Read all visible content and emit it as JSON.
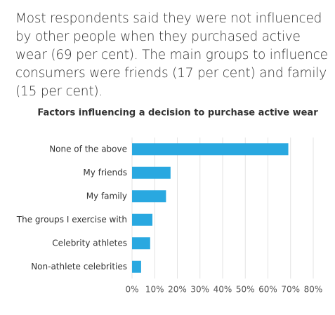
{
  "intro": "Most respondents said they were not influenced by other people when they purchased active wear (69 per cent). The main groups to influence consumers were friends (17 per cent) and family (15 per cent).",
  "chart_data": {
    "type": "bar",
    "orientation": "horizontal",
    "title": "Factors influencing a decision to purchase active wear",
    "categories": [
      "None of the above",
      "My friends",
      "My family",
      "The groups I exercise with",
      "Celebrity athletes",
      "Non-athlete celebrities"
    ],
    "values": [
      69,
      17,
      15,
      9,
      8,
      4
    ],
    "color": "#29a8e0",
    "xlim": [
      0,
      80
    ],
    "xticks": [
      {
        "value": 0,
        "label": "0%"
      },
      {
        "value": 10,
        "label": "10%"
      },
      {
        "value": 20,
        "label": "20%"
      },
      {
        "value": 30,
        "label": "30%"
      },
      {
        "value": 40,
        "label": "40%"
      },
      {
        "value": 50,
        "label": "50%"
      },
      {
        "value": 60,
        "label": "60%"
      },
      {
        "value": 70,
        "label": "70%"
      },
      {
        "value": 80,
        "label": "80%"
      }
    ],
    "grid": true
  }
}
